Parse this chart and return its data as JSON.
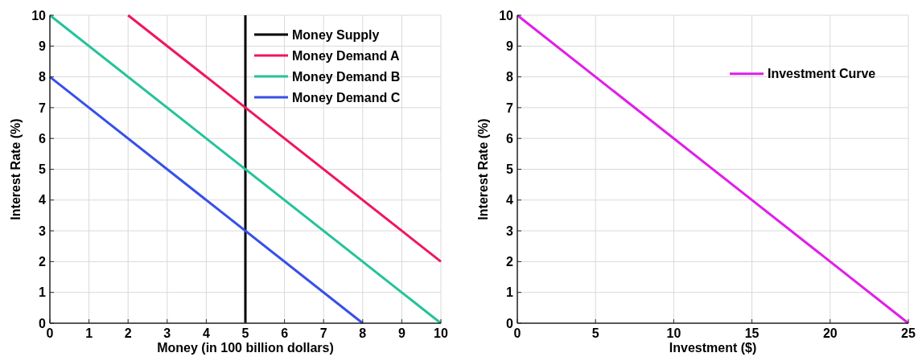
{
  "chart_data": [
    {
      "type": "line",
      "xlabel": "Money (in 100 billion dollars)",
      "ylabel": "Interest Rate (%)",
      "xlim": [
        0,
        10
      ],
      "ylim": [
        0,
        10
      ],
      "xticks": [
        0,
        1,
        2,
        3,
        4,
        5,
        6,
        7,
        8,
        9,
        10
      ],
      "yticks": [
        0,
        1,
        2,
        3,
        4,
        5,
        6,
        7,
        8,
        9,
        10
      ],
      "grid": true,
      "legend": "top right",
      "series": [
        {
          "name": "Money Supply",
          "color": "#000000",
          "x": [
            5,
            5
          ],
          "values": [
            0,
            10
          ]
        },
        {
          "name": "Money Demand A",
          "color": "#f0165e",
          "x": [
            2,
            10
          ],
          "values": [
            10,
            2
          ]
        },
        {
          "name": "Money Demand B",
          "color": "#25c39a",
          "x": [
            0,
            10
          ],
          "values": [
            10,
            0
          ]
        },
        {
          "name": "Money Demand C",
          "color": "#3650e8",
          "x": [
            0,
            8
          ],
          "values": [
            8,
            0
          ]
        }
      ]
    },
    {
      "type": "line",
      "xlabel": "Investment ($)",
      "ylabel": "Interest Rate (%)",
      "xlim": [
        0,
        25
      ],
      "ylim": [
        0,
        10
      ],
      "xticks": [
        0,
        5,
        10,
        15,
        20,
        25
      ],
      "yticks": [
        0,
        1,
        2,
        3,
        4,
        5,
        6,
        7,
        8,
        9,
        10
      ],
      "grid": true,
      "legend": "top right",
      "series": [
        {
          "name": "Investment Curve",
          "color": "#e01ee8",
          "x": [
            0,
            25
          ],
          "values": [
            10,
            0
          ]
        }
      ]
    }
  ]
}
